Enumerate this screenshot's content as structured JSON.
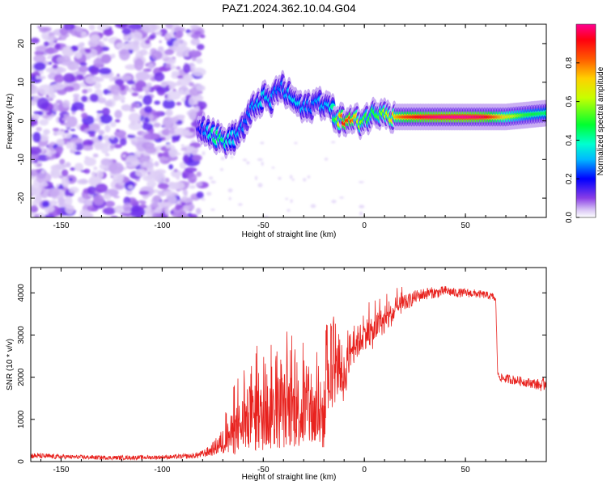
{
  "title": "PAZ1.2024.362.10.04.G04",
  "chart_data": [
    {
      "type": "heatmap",
      "xlabel": "Height of straight line (km)",
      "ylabel": "Frequency (Hz)",
      "xlim": [
        -165,
        90
      ],
      "ylim": [
        -25,
        25
      ],
      "x_ticks": [
        -150,
        -100,
        -50,
        0,
        50
      ],
      "y_ticks": [
        -20,
        -10,
        0,
        10,
        20
      ],
      "colorbar": {
        "label": "Normalized spectral amplitude",
        "range": [
          0,
          1
        ],
        "ticks": [
          0.0,
          0.2,
          0.4,
          0.6,
          0.8
        ],
        "colors": [
          "#ffffff",
          "#c9a8f0",
          "#7a2ee0",
          "#0000ff",
          "#00e5ff",
          "#00ff3a",
          "#f5ff00",
          "#ff8a00",
          "#ff0000",
          "#ff007f"
        ]
      },
      "ridge": {
        "x": [
          -82,
          -78,
          -74,
          -70,
          -66,
          -62,
          -58,
          -54,
          -50,
          -46,
          -42,
          -38,
          -34,
          -30,
          -26,
          -22,
          -18,
          -14,
          -10,
          -6,
          -2,
          2,
          6,
          10,
          14,
          20,
          30,
          40,
          50,
          60,
          70,
          80,
          90
        ],
        "y": [
          -1,
          -2,
          -4,
          -5,
          -5,
          -3,
          0,
          4,
          6,
          5,
          9,
          7,
          5,
          3,
          4,
          5,
          4,
          1,
          0,
          0,
          0,
          1,
          2,
          3,
          1,
          1,
          1,
          1,
          1,
          1,
          1,
          1.5,
          2
        ],
        "amplitude": [
          0.15,
          0.3,
          0.45,
          0.45,
          0.35,
          0.3,
          0.25,
          0.3,
          0.35,
          0.3,
          0.25,
          0.3,
          0.35,
          0.3,
          0.25,
          0.3,
          0.3,
          0.5,
          0.9,
          0.85,
          0.6,
          0.5,
          0.5,
          0.6,
          0.7,
          0.85,
          0.95,
          1.0,
          1.0,
          0.95,
          0.7,
          0.5,
          0.45
        ]
      }
    },
    {
      "type": "line",
      "xlabel": "Height of straight line (km)",
      "ylabel": "SNR (10 * v/v)",
      "xlim": [
        -165,
        90
      ],
      "ylim": [
        0,
        4600
      ],
      "x_ticks": [
        -150,
        -100,
        -50,
        0,
        50
      ],
      "y_ticks": [
        0,
        1000,
        2000,
        3000,
        4000
      ],
      "series": [
        {
          "color": "#e8221e",
          "x": [
            -165,
            -155,
            -145,
            -135,
            -125,
            -115,
            -105,
            -95,
            -85,
            -80,
            -76,
            -72,
            -68,
            -64,
            -60,
            -56,
            -52,
            -48,
            -44,
            -40,
            -36,
            -32,
            -28,
            -24,
            -20,
            -18,
            -16,
            -14,
            -12,
            -10,
            -8,
            -6,
            -4,
            -2,
            0,
            2,
            4,
            6,
            8,
            10,
            12,
            14,
            16,
            18,
            20,
            22,
            25,
            28,
            32,
            36,
            40,
            45,
            50,
            55,
            60,
            64,
            65,
            66,
            68,
            72,
            76,
            80,
            84,
            88,
            90
          ],
          "y": [
            140,
            120,
            110,
            100,
            90,
            95,
            100,
            110,
            130,
            180,
            260,
            400,
            550,
            700,
            900,
            1050,
            1000,
            1100,
            1150,
            1250,
            1200,
            1200,
            1150,
            1100,
            1100,
            1700,
            2000,
            2100,
            2300,
            1900,
            2500,
            2700,
            2800,
            2900,
            3000,
            3100,
            3000,
            3200,
            3300,
            3300,
            3400,
            3500,
            3600,
            3700,
            3750,
            3800,
            3900,
            3950,
            4000,
            4000,
            4050,
            4000,
            4000,
            3980,
            3950,
            3900,
            3800,
            2050,
            1980,
            1950,
            1920,
            1880,
            1850,
            1800,
            1900
          ],
          "spread": [
            70,
            60,
            50,
            50,
            50,
            50,
            50,
            50,
            60,
            90,
            130,
            250,
            400,
            550,
            700,
            800,
            800,
            850,
            900,
            950,
            900,
            900,
            900,
            850,
            850,
            800,
            750,
            700,
            650,
            600,
            500,
            450,
            400,
            380,
            350,
            350,
            350,
            320,
            320,
            300,
            280,
            260,
            240,
            220,
            200,
            180,
            160,
            150,
            140,
            130,
            120,
            110,
            100,
            100,
            90,
            90,
            90,
            80,
            100,
            110,
            110,
            110,
            120,
            150,
            200
          ]
        }
      ]
    }
  ]
}
